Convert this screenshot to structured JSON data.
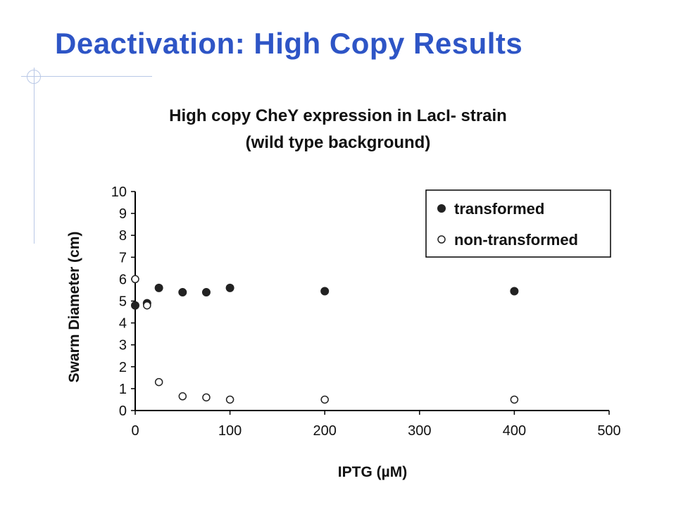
{
  "slide": {
    "title": "Deactivation: High Copy Results"
  },
  "colors": {
    "title": "#2e55c6",
    "decoration": "#b9c8e6",
    "marker": "#222222"
  },
  "chart_data": {
    "type": "scatter",
    "title": "High copy CheY expression in LacI- strain",
    "subtitle": "(wild type background)",
    "xlabel": "IPTG (µM)",
    "ylabel": "Swarm Diameter (cm)",
    "xlim": [
      0,
      500
    ],
    "ylim": [
      0,
      10
    ],
    "xticks": [
      0,
      100,
      200,
      300,
      400,
      500
    ],
    "yticks": [
      0,
      1,
      2,
      3,
      4,
      5,
      6,
      7,
      8,
      9,
      10
    ],
    "grid": false,
    "legend_position": "top-right",
    "series": [
      {
        "name": "transformed",
        "marker": "filled-circle",
        "x": [
          0,
          12.5,
          25,
          50,
          75,
          100,
          200,
          400
        ],
        "y": [
          4.8,
          4.9,
          5.6,
          5.4,
          5.4,
          5.6,
          5.45,
          5.45
        ]
      },
      {
        "name": "non-transformed",
        "marker": "open-circle",
        "x": [
          0,
          12.5,
          25,
          50,
          75,
          100,
          200,
          400
        ],
        "y": [
          6.0,
          4.8,
          1.3,
          0.65,
          0.6,
          0.5,
          0.5,
          0.5
        ]
      }
    ]
  }
}
